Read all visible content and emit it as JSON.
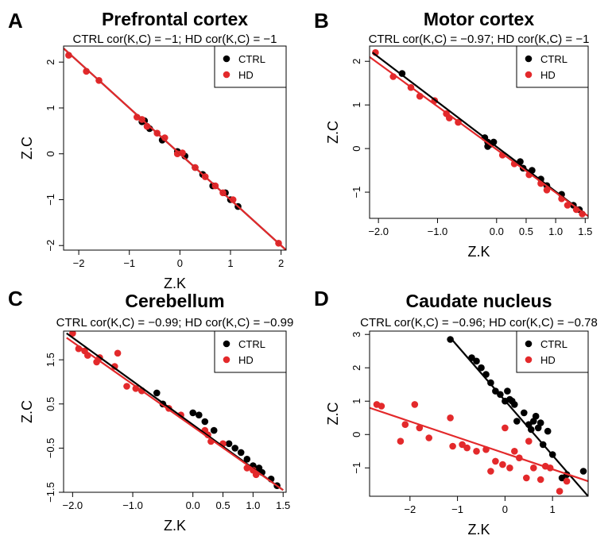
{
  "chart_data": [
    {
      "letter": "A",
      "type": "scatter",
      "title": "Prefrontal cortex",
      "subtitle": "CTRL cor(K,C) = −1; HD cor(K,C) = −1",
      "xlabel": "Z.K",
      "ylabel": "Z.C",
      "xlim": [
        -2.3,
        2.1
      ],
      "ylim": [
        -2.1,
        2.35
      ],
      "xticks": [
        -2,
        -1,
        0,
        1,
        2
      ],
      "xtick_labels": [
        "−2",
        "−1",
        "0",
        "1",
        "2"
      ],
      "yticks": [
        -2,
        -1,
        0,
        1,
        2
      ],
      "ytick_labels": [
        "−2",
        "−1",
        "0",
        "1",
        "2"
      ],
      "legend": {
        "position": "top-right",
        "entries": [
          {
            "label": "CTRL",
            "color": "#000000"
          },
          {
            "label": "HD",
            "color": "#e3292b"
          }
        ]
      },
      "series": [
        {
          "name": "CTRL",
          "color": "#000000",
          "fit": {
            "x1": -2.3,
            "y1": 2.3,
            "x2": 2.1,
            "y2": -2.1
          },
          "points": [
            [
              -0.75,
              0.7
            ],
            [
              -0.6,
              0.55
            ],
            [
              -0.35,
              0.3
            ],
            [
              -0.05,
              0.05
            ],
            [
              0.1,
              -0.05
            ],
            [
              0.45,
              -0.45
            ],
            [
              0.65,
              -0.7
            ],
            [
              0.9,
              -0.85
            ],
            [
              1.0,
              -1.0
            ],
            [
              1.15,
              -1.15
            ],
            [
              -0.7,
              0.72
            ],
            [
              0.3,
              -0.3
            ]
          ]
        },
        {
          "name": "HD",
          "color": "#e3292b",
          "fit": {
            "x1": -2.3,
            "y1": 2.3,
            "x2": 2.1,
            "y2": -2.1
          },
          "points": [
            [
              -2.2,
              2.15
            ],
            [
              -1.85,
              1.8
            ],
            [
              -1.6,
              1.6
            ],
            [
              -0.85,
              0.8
            ],
            [
              -0.75,
              0.75
            ],
            [
              -0.65,
              0.6
            ],
            [
              -0.45,
              0.45
            ],
            [
              -0.05,
              0.0
            ],
            [
              0.3,
              -0.3
            ],
            [
              0.5,
              -0.5
            ],
            [
              0.7,
              -0.7
            ],
            [
              0.85,
              -0.85
            ],
            [
              1.05,
              -1.0
            ],
            [
              1.95,
              -1.95
            ],
            [
              0.05,
              0.02
            ],
            [
              -0.3,
              0.35
            ]
          ]
        }
      ]
    },
    {
      "letter": "B",
      "type": "scatter",
      "title": "Motor cortex",
      "subtitle": "CTRL cor(K,C) = −0.97; HD cor(K,C) = −1",
      "xlabel": "Z.K",
      "ylabel": "Z.C",
      "xlim": [
        -2.15,
        1.55
      ],
      "ylim": [
        -1.6,
        2.35
      ],
      "xticks": [
        -2.0,
        -1.0,
        0.0,
        0.5,
        1.0,
        1.5
      ],
      "xtick_labels": [
        "−2.0",
        "−1.0",
        "0.0",
        "0.5",
        "1.0",
        "1.5"
      ],
      "yticks": [
        -1,
        0,
        1,
        2
      ],
      "ytick_labels": [
        "−1",
        "0",
        "1",
        "2"
      ],
      "legend": {
        "position": "top-right",
        "entries": [
          {
            "label": "CTRL",
            "color": "#000000"
          },
          {
            "label": "HD",
            "color": "#e3292b"
          }
        ]
      },
      "series": [
        {
          "name": "CTRL",
          "color": "#000000",
          "fit": {
            "x1": -2.1,
            "y1": 2.2,
            "x2": 1.5,
            "y2": -1.5
          },
          "points": [
            [
              -1.6,
              1.72
            ],
            [
              -0.2,
              0.25
            ],
            [
              -0.15,
              0.15
            ],
            [
              -0.1,
              0.1
            ],
            [
              -0.05,
              0.15
            ],
            [
              0.4,
              -0.3
            ],
            [
              0.45,
              -0.45
            ],
            [
              0.6,
              -0.5
            ],
            [
              0.75,
              -0.7
            ],
            [
              0.85,
              -0.85
            ],
            [
              1.1,
              -1.05
            ],
            [
              1.3,
              -1.3
            ],
            [
              1.4,
              -1.4
            ],
            [
              -0.15,
              0.05
            ]
          ]
        },
        {
          "name": "HD",
          "color": "#e3292b",
          "fit": {
            "x1": -2.15,
            "y1": 2.1,
            "x2": 1.55,
            "y2": -1.55
          },
          "points": [
            [
              -2.05,
              2.2
            ],
            [
              -1.75,
              1.65
            ],
            [
              -1.45,
              1.4
            ],
            [
              -1.3,
              1.2
            ],
            [
              -1.05,
              1.1
            ],
            [
              -0.85,
              0.8
            ],
            [
              -0.8,
              0.7
            ],
            [
              -0.65,
              0.6
            ],
            [
              0.1,
              -0.15
            ],
            [
              0.3,
              -0.35
            ],
            [
              0.55,
              -0.6
            ],
            [
              0.75,
              -0.8
            ],
            [
              0.85,
              -0.95
            ],
            [
              1.1,
              -1.15
            ],
            [
              1.2,
              -1.3
            ],
            [
              1.35,
              -1.4
            ],
            [
              1.45,
              -1.5
            ]
          ]
        }
      ]
    },
    {
      "letter": "C",
      "type": "scatter",
      "title": "Cerebellum",
      "subtitle": "CTRL cor(K,C) = −0.99; HD cor(K,C) = −0.99",
      "xlabel": "Z.K",
      "ylabel": "Z.C",
      "xlim": [
        -2.15,
        1.55
      ],
      "ylim": [
        -1.5,
        2.15
      ],
      "xticks": [
        -2.0,
        -1.0,
        0.0,
        0.5,
        1.0,
        1.5
      ],
      "xtick_labels": [
        "−2.0",
        "−1.0",
        "0.0",
        "0.5",
        "1.0",
        "1.5"
      ],
      "yticks": [
        -1.5,
        -0.5,
        0.5,
        1.5
      ],
      "ytick_labels": [
        "−1.5",
        "−0.5",
        "0.5",
        "1.5"
      ],
      "legend": {
        "position": "top-right",
        "entries": [
          {
            "label": "CTRL",
            "color": "#000000"
          },
          {
            "label": "HD",
            "color": "#e3292b"
          }
        ]
      },
      "series": [
        {
          "name": "CTRL",
          "color": "#000000",
          "fit": {
            "x1": -2.1,
            "y1": 2.1,
            "x2": 1.5,
            "y2": -1.45
          },
          "points": [
            [
              -0.6,
              0.75
            ],
            [
              -0.5,
              0.5
            ],
            [
              0.0,
              0.3
            ],
            [
              0.1,
              0.25
            ],
            [
              0.2,
              0.1
            ],
            [
              0.35,
              -0.1
            ],
            [
              0.6,
              -0.4
            ],
            [
              0.7,
              -0.5
            ],
            [
              0.8,
              -0.6
            ],
            [
              0.9,
              -0.75
            ],
            [
              1.0,
              -0.9
            ],
            [
              1.1,
              -0.95
            ],
            [
              1.15,
              -1.05
            ],
            [
              1.3,
              -1.2
            ],
            [
              1.4,
              -1.35
            ],
            [
              -0.85,
              0.8
            ]
          ]
        },
        {
          "name": "HD",
          "color": "#e3292b",
          "fit": {
            "x1": -2.1,
            "y1": 2.0,
            "x2": 1.5,
            "y2": -1.45
          },
          "points": [
            [
              -2.0,
              2.1
            ],
            [
              -1.9,
              1.75
            ],
            [
              -1.8,
              1.7
            ],
            [
              -1.75,
              1.6
            ],
            [
              -1.6,
              1.45
            ],
            [
              -1.55,
              1.55
            ],
            [
              -1.3,
              1.35
            ],
            [
              -1.25,
              1.65
            ],
            [
              -1.1,
              0.9
            ],
            [
              -0.95,
              0.85
            ],
            [
              -0.85,
              0.8
            ],
            [
              -0.4,
              0.4
            ],
            [
              0.2,
              -0.1
            ],
            [
              0.3,
              -0.35
            ],
            [
              0.5,
              -0.4
            ],
            [
              0.9,
              -0.95
            ],
            [
              1.0,
              -1.0
            ],
            [
              1.05,
              -1.1
            ],
            [
              -0.2,
              0.25
            ],
            [
              0.25,
              -0.2
            ]
          ]
        }
      ]
    },
    {
      "letter": "D",
      "type": "scatter",
      "title": "Caudate nucleus",
      "subtitle": "CTRL cor(K,C) = −0.96; HD cor(K,C) = −0.78",
      "xlabel": "Z.K",
      "ylabel": "Z.C",
      "xlim": [
        -2.85,
        1.75
      ],
      "ylim": [
        -1.85,
        3.1
      ],
      "xticks": [
        -2,
        -1,
        0,
        1
      ],
      "xtick_labels": [
        "−2",
        "−1",
        "0",
        "1"
      ],
      "yticks": [
        -1,
        0,
        1,
        2,
        3
      ],
      "ytick_labels": [
        "−1",
        "0",
        "1",
        "2",
        "3"
      ],
      "legend": {
        "position": "top-right",
        "entries": [
          {
            "label": "CTRL",
            "color": "#000000"
          },
          {
            "label": "HD",
            "color": "#e3292b"
          }
        ]
      },
      "series": [
        {
          "name": "CTRL",
          "color": "#000000",
          "fit": {
            "x1": -1.15,
            "y1": 2.9,
            "x2": 1.75,
            "y2": -1.85
          },
          "points": [
            [
              -1.15,
              2.85
            ],
            [
              -0.7,
              2.3
            ],
            [
              -0.6,
              2.2
            ],
            [
              -0.4,
              1.8
            ],
            [
              -0.3,
              1.55
            ],
            [
              -0.2,
              1.3
            ],
            [
              -0.1,
              1.2
            ],
            [
              0.0,
              1.0
            ],
            [
              0.05,
              1.3
            ],
            [
              0.1,
              1.05
            ],
            [
              0.2,
              0.9
            ],
            [
              0.25,
              0.4
            ],
            [
              0.4,
              0.65
            ],
            [
              0.5,
              0.3
            ],
            [
              0.55,
              0.15
            ],
            [
              0.6,
              0.4
            ],
            [
              0.65,
              0.55
            ],
            [
              0.7,
              0.2
            ],
            [
              0.75,
              0.35
            ],
            [
              0.8,
              -0.3
            ],
            [
              0.9,
              0.1
            ],
            [
              1.0,
              -0.6
            ],
            [
              1.2,
              -1.3
            ],
            [
              1.3,
              -1.2
            ],
            [
              1.65,
              -1.1
            ],
            [
              -0.5,
              2.0
            ],
            [
              0.15,
              1.0
            ]
          ]
        },
        {
          "name": "HD",
          "color": "#e3292b",
          "fit": {
            "x1": -2.85,
            "y1": 0.8,
            "x2": 1.75,
            "y2": -1.4
          },
          "points": [
            [
              -2.7,
              0.9
            ],
            [
              -2.6,
              0.85
            ],
            [
              -2.1,
              0.3
            ],
            [
              -1.9,
              0.9
            ],
            [
              -1.8,
              0.2
            ],
            [
              -1.6,
              -0.1
            ],
            [
              -1.15,
              0.5
            ],
            [
              -1.1,
              -0.35
            ],
            [
              -0.9,
              -0.3
            ],
            [
              -0.8,
              -0.4
            ],
            [
              -0.6,
              -0.5
            ],
            [
              -0.4,
              -0.45
            ],
            [
              -0.2,
              -0.8
            ],
            [
              -0.05,
              -0.9
            ],
            [
              0.1,
              -1.0
            ],
            [
              0.2,
              -0.5
            ],
            [
              0.3,
              -0.7
            ],
            [
              0.45,
              -1.3
            ],
            [
              0.6,
              -1.0
            ],
            [
              0.75,
              -1.35
            ],
            [
              0.85,
              -0.95
            ],
            [
              0.95,
              -1.0
            ],
            [
              1.15,
              -1.7
            ],
            [
              1.3,
              -1.4
            ],
            [
              -0.3,
              -1.1
            ],
            [
              0.5,
              -0.2
            ],
            [
              -2.2,
              -0.2
            ],
            [
              0.0,
              0.2
            ]
          ]
        }
      ]
    }
  ]
}
